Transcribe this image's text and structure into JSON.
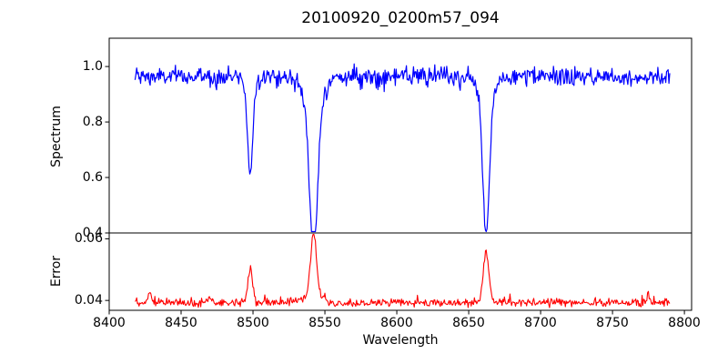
{
  "figure": {
    "title": "20100920_0200m57_094",
    "xlabel": "Wavelength",
    "ylabel_top": "Spectrum",
    "ylabel_bottom": "Error"
  },
  "axes": {
    "x_tick_labels": [
      "8400",
      "8450",
      "8500",
      "8550",
      "8600",
      "8650",
      "8700",
      "8750",
      "8800"
    ],
    "spectrum_tick_labels": [
      "1.0",
      "0.8",
      "0.6",
      "0.4"
    ],
    "error_tick_labels": [
      "0.06",
      "0.04"
    ]
  },
  "chart_data": [
    {
      "type": "line",
      "name": "spectrum",
      "panel": "top",
      "title": "20100920_0200m57_094",
      "ylabel": "Spectrum",
      "color": "#0000ff",
      "line_width": 1.2,
      "xlim": [
        8400,
        8805
      ],
      "ylim": [
        0.4,
        1.102
      ],
      "xticks": [
        8400,
        8450,
        8500,
        8550,
        8600,
        8650,
        8700,
        8750,
        8800
      ],
      "yticks": [
        1.0,
        0.8,
        0.6,
        0.4
      ],
      "x_start": 8418,
      "x_end": 8790,
      "x_step": 0.55,
      "continuum": 0.963,
      "noise_sigma": 0.017,
      "seed": 1234,
      "absorption_lines": [
        {
          "center": 8498.0,
          "depth": 0.35,
          "sigma": 1.9,
          "min_value": 0.61
        },
        {
          "center": 8542.1,
          "depth": 0.55,
          "sigma": 2.7,
          "wing_depth": 0.1,
          "wing_sigma": 6.5,
          "min_value": 0.42
        },
        {
          "center": 8662.1,
          "depth": 0.5,
          "sigma": 2.3,
          "wing_depth": 0.07,
          "wing_sigma": 5.5,
          "min_value": 0.46
        }
      ],
      "description": "Normalized stellar spectrum, noisy continuum ~0.96 with Ca II triplet absorption dips at 8498, 8542, 8662 A"
    },
    {
      "type": "line",
      "name": "error",
      "panel": "bottom",
      "ylabel": "Error",
      "xlabel": "Wavelength",
      "color": "#ff0000",
      "line_width": 1.1,
      "xlim": [
        8400,
        8805
      ],
      "ylim": [
        0.0368,
        0.0619
      ],
      "xticks": [
        8400,
        8450,
        8500,
        8550,
        8600,
        8650,
        8700,
        8750,
        8800
      ],
      "yticks": [
        0.06,
        0.04
      ],
      "x_start": 8418,
      "x_end": 8790,
      "x_step": 0.55,
      "baseline": 0.0393,
      "noise_sigma": 0.00065,
      "spike_probability": 0.025,
      "spike_amplitude": 0.0015,
      "seed": 99,
      "peaks": [
        {
          "center": 8428.0,
          "height": 0.0035,
          "sigma": 1.3
        },
        {
          "center": 8470.0,
          "height": 0.0014,
          "sigma": 1.0
        },
        {
          "center": 8498.0,
          "height": 0.0105,
          "sigma": 1.7,
          "max_value": 0.05
        },
        {
          "center": 8542.1,
          "height": 0.0195,
          "sigma": 2.0,
          "wing_height": 0.003,
          "wing_sigma": 5.0,
          "max_value": 0.0595
        },
        {
          "center": 8662.1,
          "height": 0.0165,
          "sigma": 1.9,
          "max_value": 0.0565
        },
        {
          "center": 8775.0,
          "height": 0.0028,
          "sigma": 0.9
        }
      ],
      "description": "Error spectrum, flat baseline ~0.04 with peaks at the Ca II triplet line positions"
    }
  ]
}
